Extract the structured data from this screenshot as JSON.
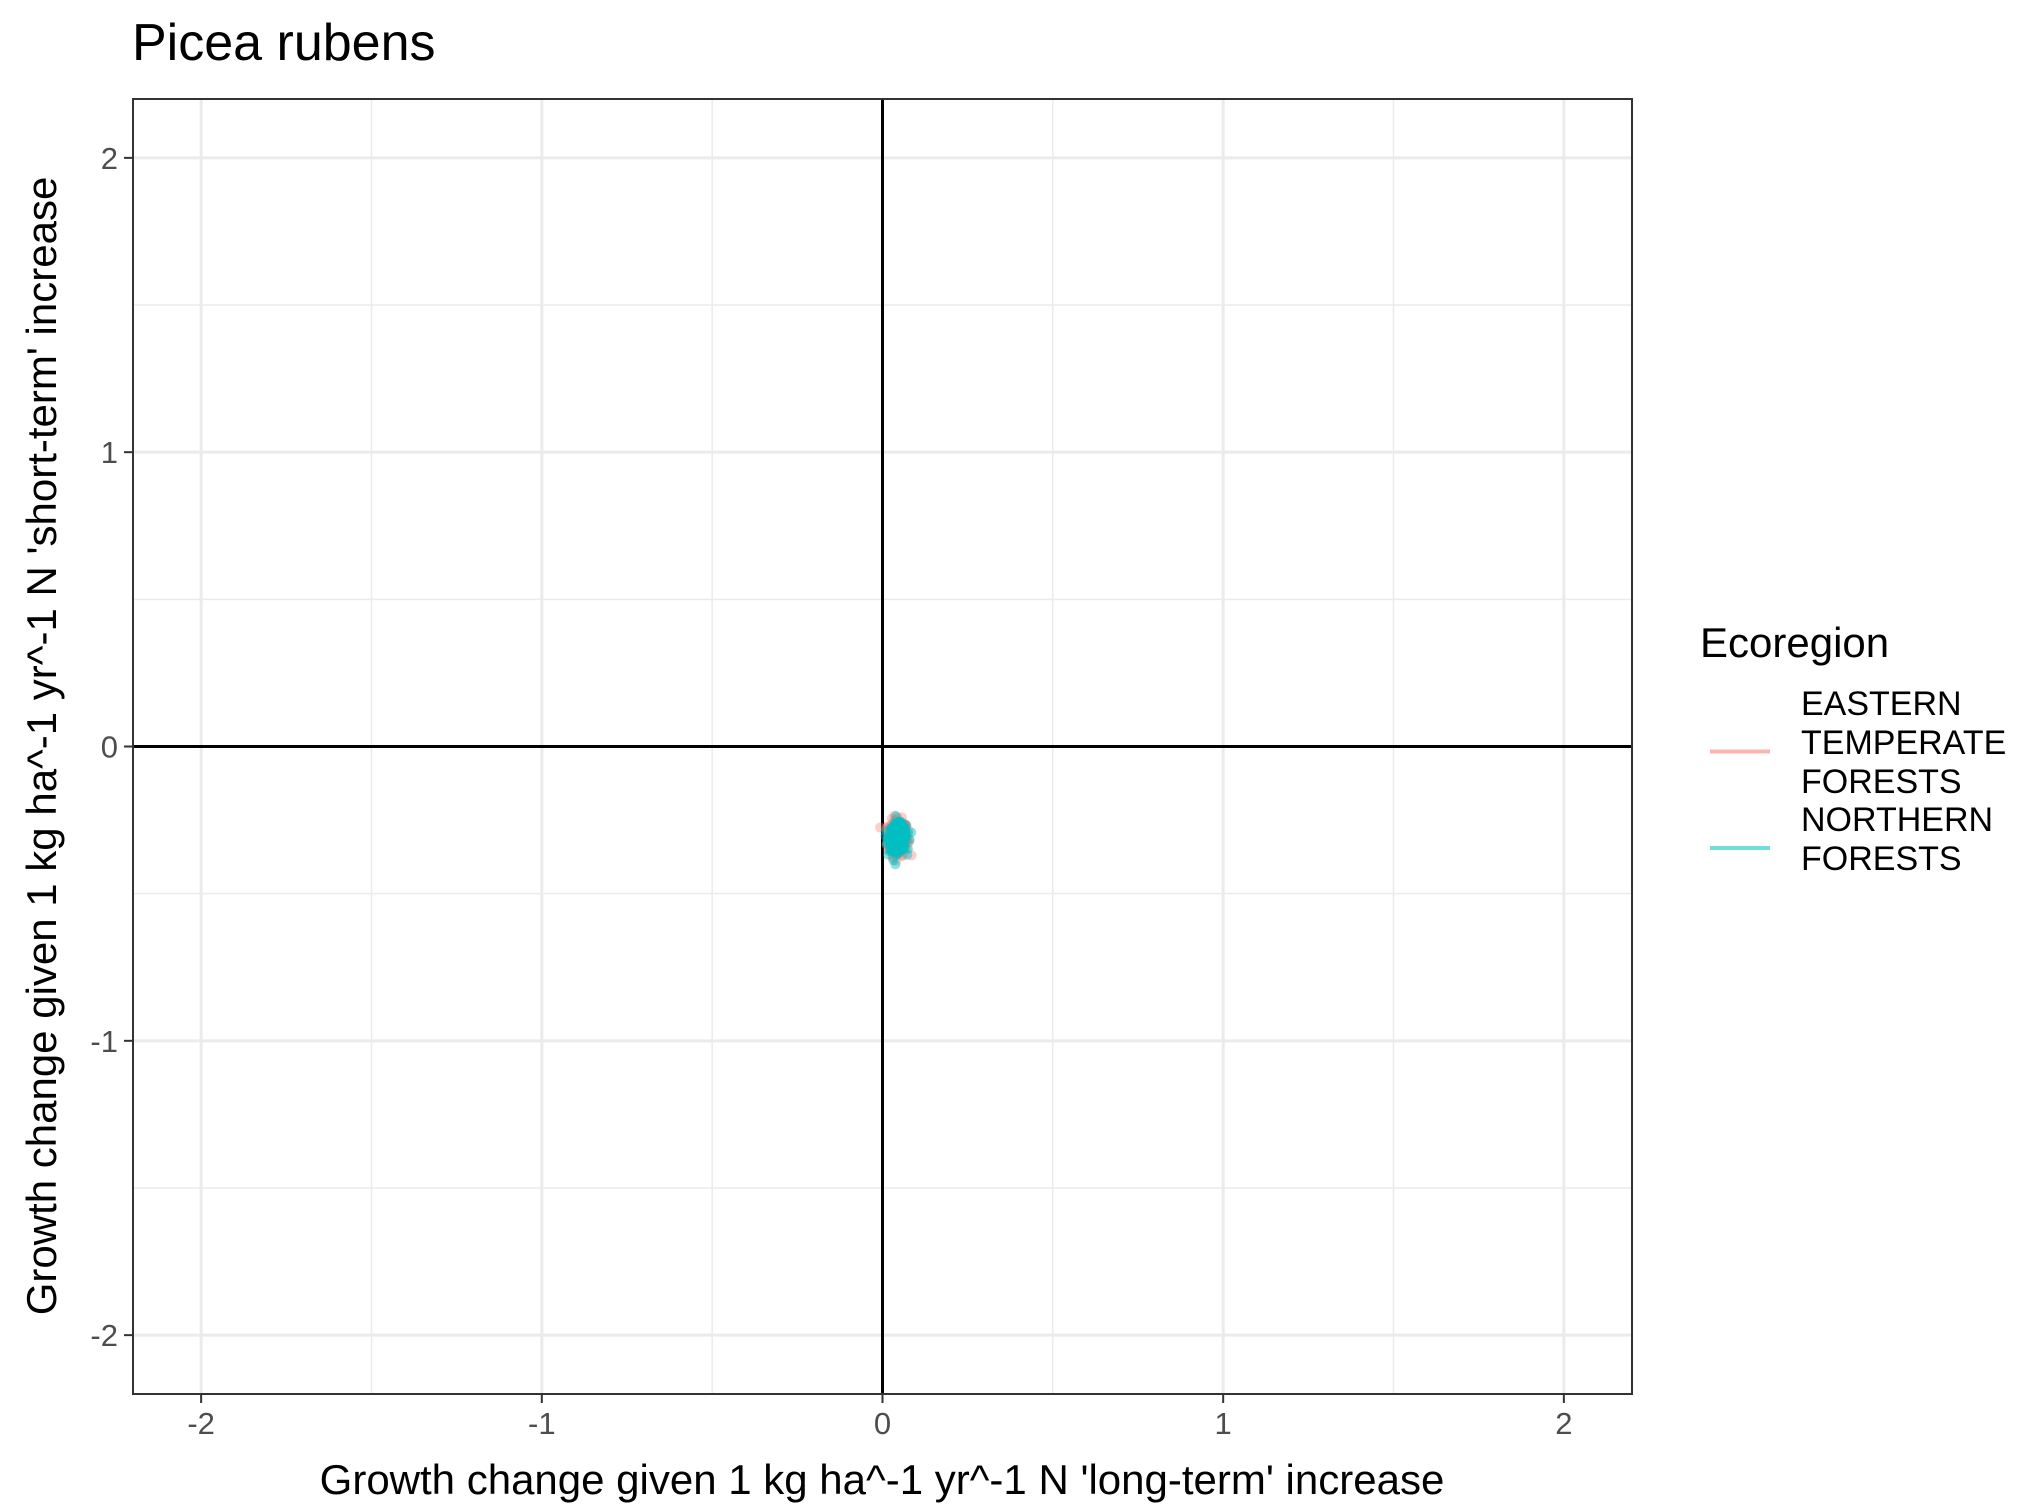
{
  "chart_data": {
    "type": "scatter",
    "title": "Picea rubens",
    "xlabel": "Growth change given 1 kg ha^-1 yr^-1 N 'long-term' increase",
    "ylabel": "Growth change given 1 kg ha^-1 yr^-1 N 'short-term' increase",
    "xlim": [
      -2.2,
      2.2
    ],
    "ylim": [
      -2.2,
      2.2
    ],
    "x_ticks": [
      -2,
      -1,
      0,
      1,
      2
    ],
    "y_ticks": [
      -2,
      -1,
      0,
      1,
      2
    ],
    "x_tick_labels": [
      "-2",
      "-1",
      "0",
      "1",
      "2"
    ],
    "y_tick_labels": [
      "-2",
      "-1",
      "0",
      "1",
      "2"
    ],
    "reference_lines": {
      "x": 0,
      "y": 0
    },
    "grid": true,
    "legend": {
      "title": "Ecoregion",
      "placement": "right",
      "entries": [
        {
          "label_lines": [
            "EASTERN",
            "TEMPERATE",
            "FORESTS"
          ],
          "color": "#F8766D"
        },
        {
          "label_lines": [
            "NORTHERN",
            "FORESTS"
          ],
          "color": "#00BFC4"
        }
      ]
    },
    "series": [
      {
        "name": "EASTERN TEMPERATE FORESTS",
        "color": "#F8766D",
        "center": {
          "x": 0.045,
          "y": -0.31
        },
        "spread": {
          "x": 0.03,
          "y": 0.06
        }
      },
      {
        "name": "NORTHERN FORESTS",
        "color": "#00BFC4",
        "center": {
          "x": 0.045,
          "y": -0.31
        },
        "spread": {
          "x": 0.025,
          "y": 0.045
        }
      }
    ]
  }
}
